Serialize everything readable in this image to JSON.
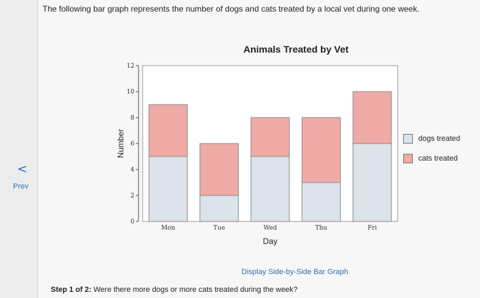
{
  "nav": {
    "prev_arrow": "<",
    "prev_label": "Prev"
  },
  "question": {
    "intro": "The following bar graph represents the number of dogs and cats treated by a local vet during one week.",
    "step_label": "Step 1 of 2:",
    "step_text": "Were there more dogs or more cats treated during the week?"
  },
  "display_option": "Display Side-by-Side Bar Graph",
  "colors": {
    "dogs": "#dde3ea",
    "cats": "#f0aaa5"
  },
  "chart_data": {
    "type": "bar",
    "stacked": true,
    "title": "Animals Treated by Vet",
    "xlabel": "Day",
    "ylabel": "Number",
    "categories": [
      "Mon",
      "Tue",
      "Wed",
      "Thu",
      "Fri"
    ],
    "series": [
      {
        "name": "dogs treated",
        "values": [
          5,
          2,
          5,
          3,
          6
        ]
      },
      {
        "name": "cats treated",
        "values": [
          4,
          4,
          3,
          5,
          4
        ]
      }
    ],
    "ylim": [
      0,
      12
    ],
    "yticks": [
      "0",
      "2",
      "4",
      "6",
      "8",
      "10",
      "12"
    ],
    "legend_position": "right"
  }
}
